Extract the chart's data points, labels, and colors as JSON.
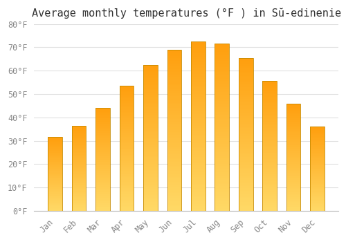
{
  "title": "Average monthly temperatures (°F ) in Sŭ-edinenie",
  "months": [
    "Jan",
    "Feb",
    "Mar",
    "Apr",
    "May",
    "Jun",
    "Jul",
    "Aug",
    "Sep",
    "Oct",
    "Nov",
    "Dec"
  ],
  "values": [
    31.5,
    36.5,
    44,
    53.5,
    62.5,
    69,
    72.5,
    71.5,
    65.5,
    55.5,
    46,
    36
  ],
  "bar_color_bottom": "#FFD966",
  "bar_color_top": "#FFA500",
  "bar_edge_color": "#C68A00",
  "ylim": [
    0,
    80
  ],
  "yticks": [
    0,
    10,
    20,
    30,
    40,
    50,
    60,
    70,
    80
  ],
  "ytick_labels": [
    "0°F",
    "10°F",
    "20°F",
    "30°F",
    "40°F",
    "50°F",
    "60°F",
    "70°F",
    "80°F"
  ],
  "background_color": "#FFFFFF",
  "grid_color": "#E0E0E0",
  "title_fontsize": 11,
  "tick_fontsize": 8.5,
  "bar_width": 0.6
}
